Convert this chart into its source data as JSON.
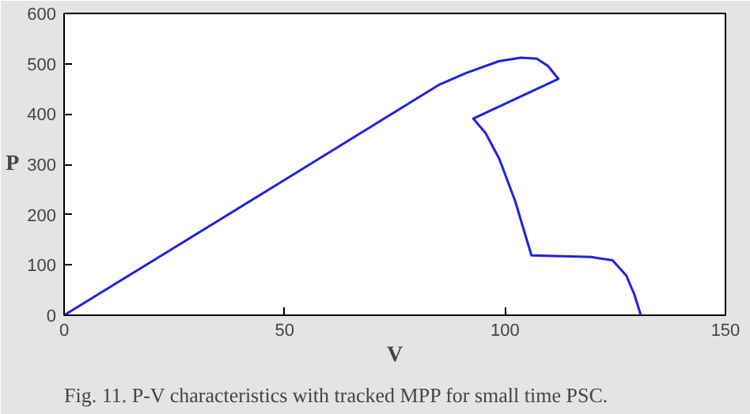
{
  "chart_data": {
    "type": "line",
    "xlabel": "V",
    "ylabel": "P",
    "annotations": [
      "Fig. 11. P-V characteristics with tracked MPP for small time PSC."
    ],
    "x": [
      0,
      50,
      85.2,
      91.3,
      98.6,
      103.6,
      107.2,
      109.7,
      112.1,
      92.8,
      95.6,
      98.7,
      102.3,
      106,
      119.5,
      124.4,
      127.5,
      129.3,
      130.8
    ],
    "series": [
      {
        "color": "#2222dd",
        "values": [
          0,
          269,
          459,
          482,
          505,
          512,
          510,
          496,
          470,
          391,
          362,
          311,
          227,
          119,
          116,
          109,
          79,
          42,
          0
        ]
      }
    ],
    "xlim": [
      0,
      150
    ],
    "xticks": [
      0,
      50,
      100,
      150
    ],
    "ylim": [
      0,
      600
    ],
    "yticks": [
      0,
      100,
      200,
      300,
      400,
      500,
      600
    ],
    "grid": false,
    "marker": "none",
    "line_style": "solid"
  }
}
